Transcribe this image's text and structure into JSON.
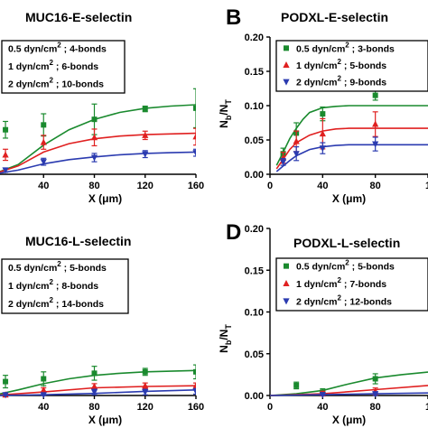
{
  "panels": [
    {
      "letter": "",
      "title": "MUC16-E-selectin"
    },
    {
      "letter": "B",
      "title": "PODXL-E-selectin"
    },
    {
      "letter": "",
      "title": "MUC16-L-selectin"
    },
    {
      "letter": "D",
      "title": "PODXL-L-selectin"
    }
  ],
  "colors": {
    "green": "#1a8a2e",
    "red": "#e02020",
    "blue": "#2b3bb0"
  },
  "chart_data": [
    {
      "type": "line",
      "title": "MUC16-E-selectin",
      "xlabel": "X (μm)",
      "ylabel": "",
      "x_ticks": [
        "40",
        "80",
        "120",
        "160"
      ],
      "y_ticks": [],
      "xlim": [
        0,
        160
      ],
      "ylim": [
        0,
        0.2
      ],
      "legend": "top-left",
      "series": [
        {
          "name": "0.5 dyn/cm² ; 4-bonds",
          "color": "green",
          "marker": "square",
          "points": [
            [
              10,
              0.064,
              0.012
            ],
            [
              40,
              0.071,
              0.016
            ],
            [
              80,
              0.079,
              0.022
            ],
            [
              120,
              0.094,
              0.004
            ],
            [
              160,
              0.095,
              0.028
            ]
          ],
          "curve": [
            [
              0,
              0.0
            ],
            [
              20,
              0.014
            ],
            [
              40,
              0.042
            ],
            [
              60,
              0.064
            ],
            [
              80,
              0.079
            ],
            [
              100,
              0.089
            ],
            [
              120,
              0.095
            ],
            [
              140,
              0.098
            ],
            [
              160,
              0.1
            ]
          ]
        },
        {
          "name": "1 dyn/cm² ; 6-bonds",
          "color": "red",
          "marker": "triangle-up",
          "points": [
            [
              10,
              0.028,
              0.008
            ],
            [
              40,
              0.046,
              0.01
            ],
            [
              80,
              0.053,
              0.012
            ],
            [
              120,
              0.056,
              0.006
            ],
            [
              160,
              0.054,
              0.012
            ]
          ],
          "curve": [
            [
              0,
              0.0
            ],
            [
              20,
              0.012
            ],
            [
              40,
              0.032
            ],
            [
              60,
              0.044
            ],
            [
              80,
              0.051
            ],
            [
              100,
              0.055
            ],
            [
              120,
              0.057
            ],
            [
              140,
              0.058
            ],
            [
              160,
              0.059
            ]
          ]
        },
        {
          "name": "2 dyn/cm² ; 10-bonds",
          "color": "blue",
          "marker": "triangle-down",
          "points": [
            [
              10,
              0.006,
              0.003
            ],
            [
              40,
              0.018,
              0.005
            ],
            [
              80,
              0.024,
              0.006
            ],
            [
              120,
              0.029,
              0.005
            ],
            [
              160,
              0.031,
              0.005
            ]
          ],
          "curve": [
            [
              0,
              0.0
            ],
            [
              20,
              0.006
            ],
            [
              40,
              0.015
            ],
            [
              60,
              0.021
            ],
            [
              80,
              0.025
            ],
            [
              100,
              0.028
            ],
            [
              120,
              0.03
            ],
            [
              140,
              0.031
            ],
            [
              160,
              0.032
            ]
          ]
        }
      ]
    },
    {
      "type": "line",
      "title": "PODXL-E-selectin",
      "xlabel": "X (μm)",
      "ylabel": "Nb/NT",
      "x_ticks": [
        "0",
        "40",
        "80",
        "1"
      ],
      "y_ticks": [
        "0.00",
        "0.05",
        "0.10",
        "0.15",
        "0.20"
      ],
      "xlim": [
        0,
        120
      ],
      "ylim": [
        0,
        0.2
      ],
      "legend": "top-right",
      "series": [
        {
          "name": "0.5 dyn/cm² ; 3-bonds",
          "color": "green",
          "marker": "square",
          "points": [
            [
              10,
              0.03,
              0.008
            ],
            [
              20,
              0.06,
              0.015
            ],
            [
              40,
              0.088,
              0.01
            ],
            [
              80,
              0.115,
              0.007
            ]
          ],
          "curve": [
            [
              5,
              0.013
            ],
            [
              10,
              0.032
            ],
            [
              15,
              0.052
            ],
            [
              20,
              0.067
            ],
            [
              25,
              0.08
            ],
            [
              30,
              0.09
            ],
            [
              40,
              0.097
            ],
            [
              50,
              0.099
            ],
            [
              60,
              0.1
            ],
            [
              120,
              0.1
            ]
          ]
        },
        {
          "name": "1 dyn/cm² ; 5-bonds",
          "color": "red",
          "marker": "triangle-up",
          "points": [
            [
              10,
              0.024,
              0.008
            ],
            [
              20,
              0.048,
              0.015
            ],
            [
              40,
              0.059,
              0.022
            ],
            [
              80,
              0.073,
              0.018
            ]
          ],
          "curve": [
            [
              5,
              0.008
            ],
            [
              10,
              0.022
            ],
            [
              15,
              0.036
            ],
            [
              20,
              0.046
            ],
            [
              30,
              0.057
            ],
            [
              40,
              0.063
            ],
            [
              50,
              0.066
            ],
            [
              60,
              0.067
            ],
            [
              120,
              0.067
            ]
          ]
        },
        {
          "name": "2 dyn/cm² ; 9-bonds",
          "color": "blue",
          "marker": "triangle-down",
          "points": [
            [
              10,
              0.018,
              0.005
            ],
            [
              20,
              0.03,
              0.01
            ],
            [
              40,
              0.038,
              0.008
            ],
            [
              80,
              0.044,
              0.01
            ]
          ],
          "curve": [
            [
              5,
              0.004
            ],
            [
              10,
              0.012
            ],
            [
              15,
              0.02
            ],
            [
              20,
              0.027
            ],
            [
              30,
              0.036
            ],
            [
              40,
              0.04
            ],
            [
              50,
              0.042
            ],
            [
              60,
              0.043
            ],
            [
              120,
              0.043
            ]
          ]
        }
      ]
    },
    {
      "type": "line",
      "title": "MUC16-L-selectin",
      "xlabel": "X (μm)",
      "ylabel": "",
      "x_ticks": [
        "0",
        "40",
        "80",
        "120",
        "160"
      ],
      "y_ticks": [],
      "xlim": [
        0,
        160
      ],
      "ylim": [
        0,
        0.2
      ],
      "legend": "top-left",
      "series": [
        {
          "name": "0.5 dyn/cm² ; 5-bonds",
          "color": "green",
          "marker": "square",
          "points": [
            [
              10,
              0.02,
              0.009
            ],
            [
              40,
              0.024,
              0.01
            ],
            [
              80,
              0.032,
              0.01
            ],
            [
              120,
              0.034,
              0.005
            ],
            [
              160,
              0.034,
              0.01
            ]
          ],
          "curve": [
            [
              0,
              0.0
            ],
            [
              20,
              0.008
            ],
            [
              40,
              0.017
            ],
            [
              60,
              0.024
            ],
            [
              80,
              0.029
            ],
            [
              100,
              0.032
            ],
            [
              120,
              0.034
            ],
            [
              140,
              0.035
            ],
            [
              160,
              0.036
            ]
          ]
        },
        {
          "name": "1 dyn/cm² ; 8-bonds",
          "color": "red",
          "marker": "triangle-up",
          "points": [
            [
              10,
              0.001,
              0.002
            ],
            [
              40,
              0.008,
              0.003
            ],
            [
              80,
              0.013,
              0.004
            ],
            [
              120,
              0.014,
              0.004
            ],
            [
              160,
              0.014,
              0.004
            ]
          ],
          "curve": [
            [
              0,
              0.0
            ],
            [
              40,
              0.005
            ],
            [
              80,
              0.011
            ],
            [
              120,
              0.013
            ],
            [
              160,
              0.014
            ]
          ]
        },
        {
          "name": "2 dyn/cm² ; 14-bonds",
          "color": "blue",
          "marker": "triangle-down",
          "points": [
            [
              10,
              0.001,
              0.002
            ],
            [
              40,
              0.001,
              0.002
            ],
            [
              80,
              0.005,
              0.004
            ],
            [
              120,
              0.005,
              0.004
            ],
            [
              160,
              0.006,
              0.004
            ]
          ],
          "curve": [
            [
              0,
              0.0
            ],
            [
              40,
              0.001
            ],
            [
              80,
              0.003
            ],
            [
              120,
              0.006
            ],
            [
              160,
              0.008
            ]
          ]
        }
      ]
    },
    {
      "type": "line",
      "title": "PODXL-L-selectin",
      "xlabel": "X (μm)",
      "ylabel": "Nb/NT",
      "x_ticks": [
        "0",
        "40",
        "80",
        "1"
      ],
      "y_ticks": [
        "0.00",
        "0.05",
        "0.10",
        "0.15",
        "0.20"
      ],
      "xlim": [
        0,
        120
      ],
      "ylim": [
        0,
        0.2
      ],
      "legend": "top-right",
      "series": [
        {
          "name": "0.5 dyn/cm² ; 5-bonds",
          "color": "green",
          "marker": "square",
          "points": [
            [
              20,
              0.012,
              0.004
            ],
            [
              40,
              0.004,
              0.004
            ],
            [
              80,
              0.02,
              0.006
            ]
          ],
          "curve": [
            [
              0,
              0.0
            ],
            [
              20,
              0.002
            ],
            [
              40,
              0.006
            ],
            [
              60,
              0.014
            ],
            [
              80,
              0.021
            ],
            [
              100,
              0.025
            ],
            [
              120,
              0.028
            ]
          ]
        },
        {
          "name": "1 dyn/cm² ; 7-bonds",
          "color": "red",
          "marker": "triangle-up",
          "points": [
            [
              40,
              0.002,
              0.003
            ],
            [
              80,
              0.005,
              0.004
            ]
          ],
          "curve": [
            [
              0,
              0.0
            ],
            [
              40,
              0.002
            ],
            [
              80,
              0.007
            ],
            [
              120,
              0.012
            ]
          ]
        },
        {
          "name": "2 dyn/cm² ; 12-bonds",
          "color": "blue",
          "marker": "triangle-down",
          "points": [
            [
              40,
              0.001,
              0.002
            ],
            [
              80,
              0.002,
              0.002
            ]
          ],
          "curve": [
            [
              0,
              0.0
            ],
            [
              40,
              0.001
            ],
            [
              80,
              0.002
            ],
            [
              120,
              0.003
            ]
          ]
        }
      ]
    }
  ]
}
